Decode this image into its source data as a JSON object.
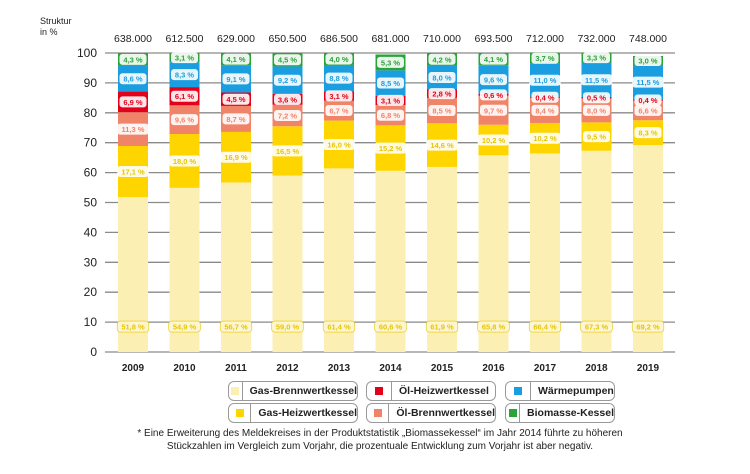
{
  "chart_data": {
    "type": "bar",
    "stacked": true,
    "title": "",
    "ylabel": "Struktur in %",
    "ylabel_lines": [
      "Struktur",
      "in %"
    ],
    "xlabel": "",
    "ylim": [
      0,
      100
    ],
    "yticks": [
      0,
      10,
      20,
      30,
      40,
      50,
      60,
      70,
      80,
      90,
      100
    ],
    "grid": true,
    "categories": [
      "2009",
      "2010",
      "2011",
      "2012",
      "2013",
      "2014",
      "2015",
      "2016",
      "2017",
      "2018",
      "2019"
    ],
    "totals": [
      "638.000",
      "612.500",
      "629.000",
      "650.500",
      "686.500",
      "681.000",
      "710.000",
      "693.500",
      "712.000",
      "732.000",
      "748.000"
    ],
    "series": [
      {
        "name": "Gas-Brennwertkessel",
        "color": "#fcefb4",
        "label_color": "#e8c400",
        "values": [
          51.8,
          54.9,
          56.7,
          59.0,
          61.4,
          60.6,
          61.9,
          65.8,
          66.4,
          67.3,
          69.2
        ]
      },
      {
        "name": "Gas-Heizwertkessel",
        "color": "#ffd500",
        "label_color": "#e8c400",
        "values": [
          17.1,
          18.0,
          16.9,
          16.5,
          16.0,
          15.2,
          14.6,
          10.2,
          10.2,
          9.5,
          8.3
        ]
      },
      {
        "name": "Öl-Brennwertkessel",
        "color": "#f08468",
        "label_color": "#f08468",
        "values": [
          11.3,
          9.6,
          8.7,
          7.2,
          6.7,
          6.8,
          8.5,
          9.7,
          8.4,
          8.0,
          6.6
        ]
      },
      {
        "name": "Öl-Heizwertkessel",
        "color": "#e2001a",
        "label_color": "#e2001a",
        "values": [
          6.9,
          6.1,
          4.5,
          3.6,
          3.1,
          3.1,
          2.8,
          0.6,
          0.4,
          0.5,
          0.4
        ]
      },
      {
        "name": "Wärmepumpen",
        "color": "#1a9ee0",
        "label_color": "#1a9ee0",
        "values": [
          8.6,
          8.3,
          9.1,
          9.2,
          8.8,
          8.5,
          8.0,
          9.6,
          11.0,
          11.5,
          11.5
        ]
      },
      {
        "name": "Biomasse-Kessel",
        "color": "#2aa338",
        "label_color": "#2aa338",
        "values": [
          4.3,
          3.1,
          4.1,
          4.5,
          4.0,
          5.3,
          4.2,
          4.1,
          3.7,
          3.3,
          3.0
        ]
      }
    ],
    "value_labels": [
      [
        "51,8 %",
        "54,9 %",
        "56,7 %",
        "59,0 %",
        "61,4 %",
        "60,6 %",
        "61,9 %",
        "65,8 %",
        "66,4 %",
        "67,3 %",
        "69,2 %"
      ],
      [
        "17,1 %",
        "18,0 %",
        "16,9 %",
        "16,5 %",
        "16,0 %",
        "15,2 %",
        "14,6 %",
        "10,2 %",
        "10,2 %",
        "9,5 %",
        "8,3 %"
      ],
      [
        "11,3 %",
        "9,6 %",
        "8,7 %",
        "7,2 %",
        "6,7 %",
        "6,8 %",
        "8,5 %",
        "9,7 %",
        "8,4 %",
        "8,0 %",
        "6,6 %"
      ],
      [
        "6,9 %",
        "6,1 %",
        "4,5 %",
        "3,6 %",
        "3,1 %",
        "3,1 %",
        "2,8 %",
        "0,6 %",
        "0,4 %",
        "0,5 %",
        "0,4 %"
      ],
      [
        "8,6 %",
        "8,3 %",
        "9,1 %",
        "9,2 %",
        "8,8 %",
        "8,5 %",
        "8,0 %",
        "9,6 %",
        "11,0 %",
        "11,5 %",
        "11,5 %"
      ],
      [
        "4,3 %",
        "3,1 %",
        "4,1 %",
        "4,5 %",
        "4,0 %",
        "5,3 %",
        "4,2 %",
        "4,1 %",
        "3,7 %",
        "3,3 %",
        "3,0 %"
      ]
    ],
    "legend_position": "bottom"
  },
  "legend": {
    "items": [
      {
        "label": "Gas-Brennwertkessel",
        "color": "#fcefb4"
      },
      {
        "label": "Öl-Heizwertkessel",
        "color": "#e2001a"
      },
      {
        "label": "Wärmepumpen",
        "color": "#1a9ee0"
      },
      {
        "label": "Gas-Heizwertkessel",
        "color": "#ffd500"
      },
      {
        "label": "Öl-Brennwertkessel",
        "color": "#f08468"
      },
      {
        "label": "Biomasse-Kessel",
        "color": "#2aa338"
      }
    ]
  },
  "footnote": "* Eine Erweiterung des Meldekreises in der Produktstatistik „Biomassekessel“ im Jahr 2014 führte zu höheren Stückzahlen im Vergleich zum Vorjahr, die prozentuale Entwicklung zum Vorjahr ist aber negativ."
}
